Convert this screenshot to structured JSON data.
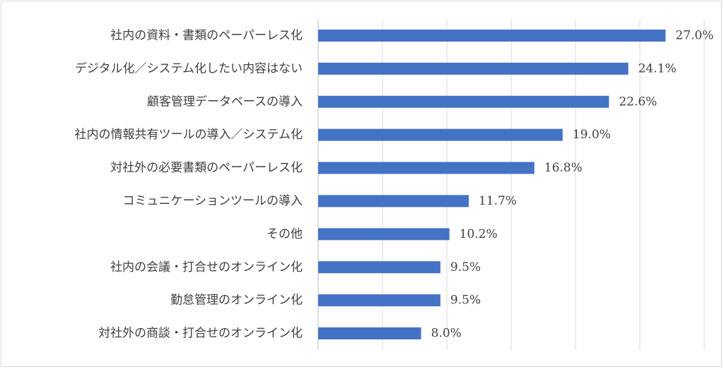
{
  "chart_data": {
    "type": "bar",
    "orientation": "horizontal",
    "categories": [
      "社内の資料・書類のペーパーレス化",
      "デジタル化／システム化したい内容はない",
      "顧客管理データベースの導入",
      "社内の情報共有ツールの導入／システム化",
      "対社外の必要書類のペーパーレス化",
      "コミュニケーションツールの導入",
      "その他",
      "社内の会議・打合せのオンライン化",
      "勤怠管理のオンライン化",
      "対社外の商談・打合せのオンライン化"
    ],
    "values": [
      27.0,
      24.1,
      22.6,
      19.0,
      16.8,
      11.7,
      10.2,
      9.5,
      9.5,
      8.0
    ],
    "value_labels": [
      "27.0%",
      "24.1%",
      "22.6%",
      "19.0%",
      "16.8%",
      "11.7%",
      "10.2%",
      "9.5%",
      "9.5%",
      "8.0%"
    ],
    "xlim": [
      0,
      30
    ],
    "x_gridlines": [
      0,
      5,
      10,
      15,
      20,
      25,
      30
    ],
    "grid": true,
    "legend": false,
    "bar_color": "#4472c4"
  }
}
